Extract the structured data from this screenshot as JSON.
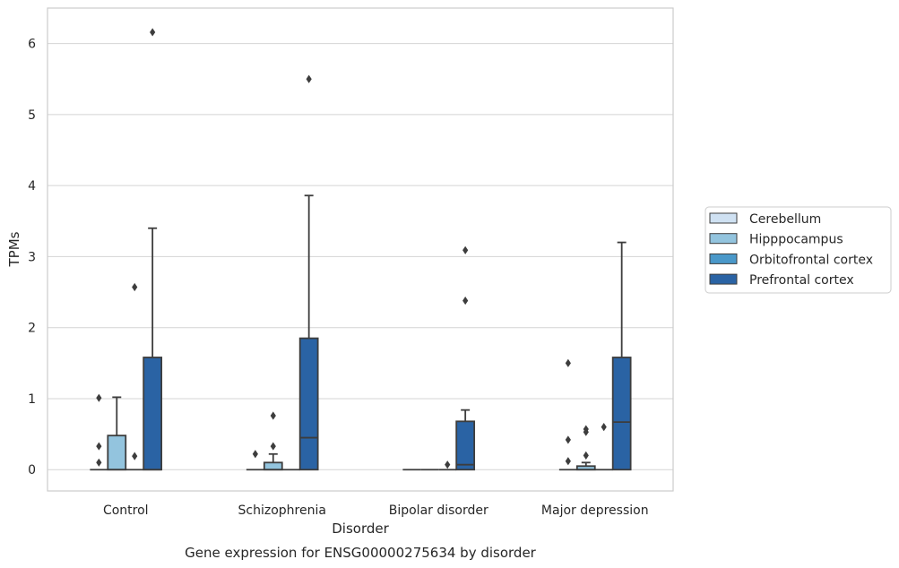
{
  "chart_data": {
    "type": "box",
    "caption": "Gene expression for ENSG00000275634 by disorder",
    "xlabel": "Disorder",
    "ylabel": "TPMs",
    "ylim": [
      -0.3,
      6.5
    ],
    "yticks": [
      0,
      1,
      2,
      3,
      4,
      5,
      6
    ],
    "grid": true,
    "legend_position": "right",
    "categories": [
      "Control",
      "Schizophrenia",
      "Bipolar disorder",
      "Major depression"
    ],
    "series": [
      {
        "name": "Cerebellum",
        "color": "#cfe1f2",
        "boxes": [
          {
            "q1": 0,
            "median": 0,
            "q3": 0,
            "whisker_low": 0,
            "whisker_high": 0,
            "outliers": [
              0.1,
              0.33,
              1.01
            ]
          },
          {
            "q1": 0,
            "median": 0,
            "q3": 0,
            "whisker_low": 0,
            "whisker_high": 0,
            "outliers": [
              0.22
            ]
          },
          {
            "q1": 0,
            "median": 0,
            "q3": 0,
            "whisker_low": 0,
            "whisker_high": 0,
            "outliers": []
          },
          {
            "q1": 0,
            "median": 0,
            "q3": 0,
            "whisker_low": 0,
            "whisker_high": 0,
            "outliers": [
              0.12,
              0.42,
              1.5
            ]
          }
        ]
      },
      {
        "name": "Hipppocampus",
        "color": "#93c4de",
        "boxes": [
          {
            "q1": 0,
            "median": 0,
            "q3": 0.48,
            "whisker_low": 0,
            "whisker_high": 1.02,
            "outliers": []
          },
          {
            "q1": 0,
            "median": 0,
            "q3": 0.1,
            "whisker_low": 0,
            "whisker_high": 0.22,
            "outliers": [
              0.33,
              0.76
            ]
          },
          {
            "q1": 0,
            "median": 0,
            "q3": 0,
            "whisker_low": 0,
            "whisker_high": 0,
            "outliers": []
          },
          {
            "q1": 0,
            "median": 0,
            "q3": 0.05,
            "whisker_low": 0,
            "whisker_high": 0.1,
            "outliers": [
              0.2,
              0.53,
              0.57
            ]
          }
        ]
      },
      {
        "name": "Orbitofrontal cortex",
        "color": "#4a98c9",
        "boxes": [
          {
            "q1": 0,
            "median": 0,
            "q3": 0,
            "whisker_low": 0,
            "whisker_high": 0,
            "outliers": [
              0.19,
              2.57
            ]
          },
          {
            "q1": 0,
            "median": 0,
            "q3": 0,
            "whisker_low": 0,
            "whisker_high": 0,
            "outliers": []
          },
          {
            "q1": 0,
            "median": 0,
            "q3": 0,
            "whisker_low": 0,
            "whisker_high": 0,
            "outliers": [
              0.07
            ]
          },
          {
            "q1": 0,
            "median": 0,
            "q3": 0,
            "whisker_low": 0,
            "whisker_high": 0,
            "outliers": [
              0.6
            ]
          }
        ]
      },
      {
        "name": "Prefrontal cortex",
        "color": "#2a63a4",
        "boxes": [
          {
            "q1": 0,
            "median": 0,
            "q3": 1.58,
            "whisker_low": 0,
            "whisker_high": 3.4,
            "outliers": [
              6.16
            ]
          },
          {
            "q1": 0,
            "median": 0.45,
            "q3": 1.85,
            "whisker_low": 0,
            "whisker_high": 3.86,
            "outliers": [
              5.5
            ]
          },
          {
            "q1": 0,
            "median": 0.07,
            "q3": 0.68,
            "whisker_low": 0,
            "whisker_high": 0.84,
            "outliers": [
              2.38,
              3.09
            ]
          },
          {
            "q1": 0,
            "median": 0.67,
            "q3": 1.58,
            "whisker_low": 0,
            "whisker_high": 3.2,
            "outliers": []
          }
        ]
      }
    ]
  }
}
